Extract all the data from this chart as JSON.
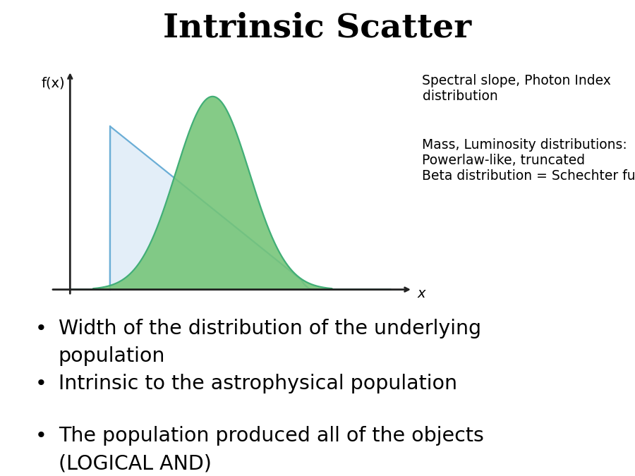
{
  "title": "Intrinsic Scatter",
  "title_fontsize": 34,
  "title_fontweight": "bold",
  "title_fontfamily": "serif",
  "background_color": "#ffffff",
  "bullet_points": [
    [
      "Width of the distribution of the underlying",
      "population"
    ],
    [
      "Intrinsic to the astrophysical population"
    ],
    [
      "The population produced all of the objects",
      "(LOGICAL AND)"
    ]
  ],
  "bullet_fontsize": 20.5,
  "annotation_line1": "Spectral slope, Photon Index\ndistribution",
  "annotation_line2": "Mass, Luminosity distributions:\nPowerlaw-like, truncated\nBeta distribution = Schechter function",
  "annotation_fontsize": 13.5,
  "curve1_color": "#6baed6",
  "curve1_fill": "#deebf7",
  "curve2_color": "#41ae76",
  "curve2_fill": "#74c476",
  "axis_color": "#222222",
  "ylabel": "f(x)",
  "xlabel": "x"
}
